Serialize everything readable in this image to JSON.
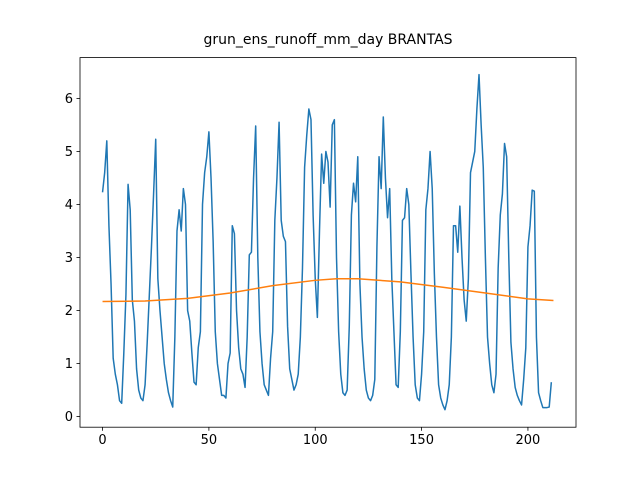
{
  "chart_data": {
    "type": "line",
    "title": "grun_ens_runoff_mm_day BRANTAS",
    "xlim": [
      -10.6,
      222.6
    ],
    "ylim": [
      -0.2,
      6.77
    ],
    "xticks": [
      0,
      50,
      100,
      150,
      200
    ],
    "yticks": [
      0,
      1,
      2,
      3,
      4,
      5,
      6
    ],
    "series": [
      {
        "color": "#1f77b4",
        "values": [
          4.23,
          4.6,
          5.2,
          3.6,
          2.5,
          1.1,
          0.8,
          0.6,
          0.3,
          0.25,
          1.2,
          2.3,
          4.38,
          3.9,
          2.2,
          1.8,
          0.9,
          0.5,
          0.35,
          0.3,
          0.6,
          1.4,
          2.3,
          3.2,
          4.2,
          5.23,
          2.6,
          2.0,
          1.5,
          1.0,
          0.7,
          0.45,
          0.3,
          0.18,
          1.5,
          3.5,
          3.9,
          3.5,
          4.3,
          4.0,
          2.0,
          1.8,
          1.2,
          0.65,
          0.6,
          1.3,
          1.6,
          4.0,
          4.6,
          4.9,
          5.37,
          4.5,
          3.3,
          1.6,
          1.0,
          0.7,
          0.4,
          0.4,
          0.35,
          1.0,
          1.2,
          3.6,
          3.45,
          2.0,
          1.3,
          0.9,
          0.8,
          0.55,
          1.5,
          3.05,
          3.1,
          4.5,
          5.48,
          3.0,
          1.6,
          1.0,
          0.6,
          0.5,
          0.4,
          1.1,
          1.6,
          3.7,
          4.5,
          5.55,
          3.7,
          3.4,
          3.3,
          1.7,
          0.9,
          0.7,
          0.5,
          0.6,
          0.8,
          1.5,
          2.8,
          4.7,
          5.3,
          5.8,
          5.6,
          3.8,
          2.6,
          1.87,
          3.5,
          4.95,
          4.4,
          5.0,
          4.8,
          3.95,
          5.5,
          5.6,
          3.0,
          1.6,
          0.8,
          0.45,
          0.4,
          0.5,
          1.7,
          3.8,
          4.4,
          4.05,
          4.9,
          2.5,
          1.5,
          0.9,
          0.5,
          0.35,
          0.3,
          0.4,
          0.7,
          3.2,
          4.9,
          4.3,
          5.65,
          4.5,
          3.75,
          4.3,
          2.6,
          1.6,
          0.6,
          0.55,
          1.6,
          3.7,
          3.75,
          4.3,
          4.0,
          2.7,
          1.5,
          0.6,
          0.35,
          0.3,
          0.8,
          1.6,
          3.9,
          4.3,
          5.0,
          4.3,
          2.7,
          1.5,
          0.6,
          0.35,
          0.22,
          0.13,
          0.3,
          0.6,
          1.5,
          3.6,
          3.6,
          3.1,
          3.97,
          3.0,
          2.2,
          1.8,
          2.6,
          4.6,
          4.8,
          5.0,
          5.8,
          6.45,
          5.5,
          4.7,
          3.0,
          1.5,
          1.0,
          0.6,
          0.45,
          0.8,
          2.8,
          3.8,
          4.2,
          5.15,
          4.9,
          3.0,
          1.4,
          0.9,
          0.55,
          0.4,
          0.3,
          0.22,
          0.7,
          1.3,
          3.2,
          3.6,
          4.27,
          4.25,
          1.5,
          0.45,
          0.3,
          0.17,
          0.17,
          0.17,
          0.18,
          0.65
        ]
      },
      {
        "color": "#ff7f0e",
        "x": [
          0,
          20,
          40,
          60,
          80,
          100,
          110,
          120,
          140,
          160,
          180,
          200,
          212
        ],
        "values": [
          2.17,
          2.18,
          2.23,
          2.33,
          2.47,
          2.57,
          2.6,
          2.6,
          2.54,
          2.44,
          2.33,
          2.22,
          2.19
        ]
      }
    ]
  }
}
